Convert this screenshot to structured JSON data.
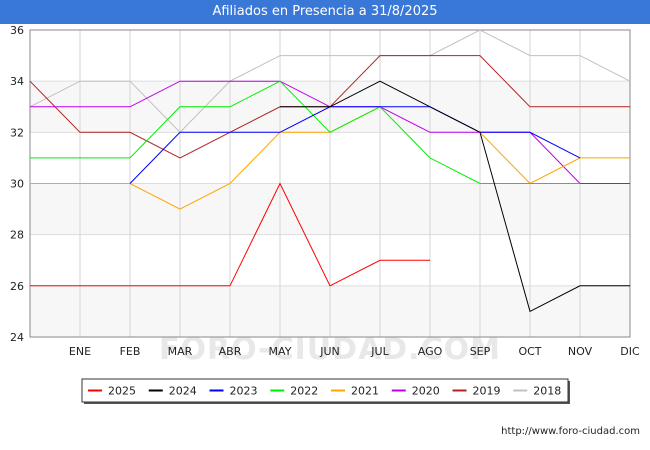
{
  "header": {
    "title": "Afiliados en Presencia a 31/8/2025"
  },
  "footer": {
    "url": "http://www.foro-ciudad.com"
  },
  "watermark": "FORO-CIUDAD.COM",
  "chart_data": {
    "type": "line",
    "title": "Afiliados en Presencia a 31/8/2025",
    "categories": [
      "",
      "ENE",
      "FEB",
      "MAR",
      "ABR",
      "MAY",
      "JUN",
      "JUL",
      "AGO",
      "SEP",
      "OCT",
      "NOV",
      "DIC"
    ],
    "ylim": [
      24,
      36
    ],
    "yticks": [
      24,
      26,
      28,
      30,
      32,
      34,
      36
    ],
    "grid": true,
    "legend_position": "bottom",
    "series": [
      {
        "name": "2025",
        "color": "#ff0000",
        "values": [
          26,
          26,
          26,
          26,
          26,
          30,
          26,
          27,
          27,
          null,
          null,
          null,
          null
        ]
      },
      {
        "name": "2024",
        "color": "#000000",
        "values": [
          null,
          null,
          null,
          null,
          null,
          33,
          33,
          34,
          33,
          32,
          25,
          26,
          26
        ]
      },
      {
        "name": "2023",
        "color": "#0000ff",
        "values": [
          null,
          null,
          30,
          32,
          32,
          32,
          33,
          33,
          33,
          32,
          32,
          31,
          null
        ]
      },
      {
        "name": "2022",
        "color": "#00ee00",
        "values": [
          31,
          31,
          31,
          33,
          33,
          34,
          32,
          33,
          31,
          30,
          30,
          30,
          null
        ]
      },
      {
        "name": "2021",
        "color": "#ffa500",
        "values": [
          30,
          30,
          30,
          29,
          30,
          32,
          32,
          33,
          null,
          32,
          30,
          31,
          31
        ]
      },
      {
        "name": "2020",
        "color": "#bb00ee",
        "values": [
          33,
          33,
          33,
          34,
          34,
          34,
          33,
          33,
          32,
          32,
          32,
          30,
          30
        ]
      },
      {
        "name": "2019",
        "color": "#b22222",
        "values": [
          34,
          32,
          32,
          31,
          32,
          33,
          33,
          35,
          35,
          35,
          33,
          33,
          33
        ]
      },
      {
        "name": "2018",
        "color": "#c0c0c0",
        "values": [
          33,
          34,
          34,
          32,
          34,
          35,
          35,
          35,
          35,
          36,
          35,
          35,
          34
        ]
      }
    ]
  }
}
